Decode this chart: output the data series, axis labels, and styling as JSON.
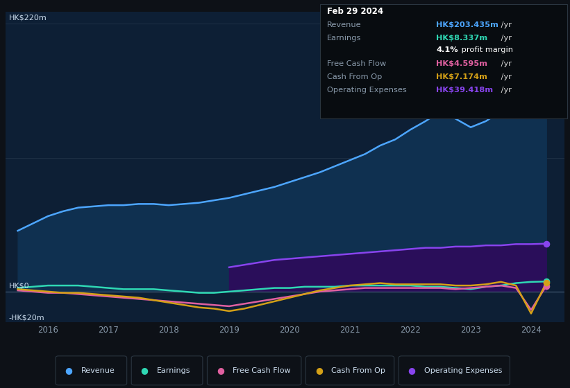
{
  "bg_color": "#0d1117",
  "plot_bg_color": "#0d1f35",
  "revenue_color": "#4da6ff",
  "earnings_color": "#2fd8b4",
  "fcf_color": "#e060a0",
  "cashop_color": "#d4a017",
  "opex_color": "#8844ee",
  "revenue_fill_color": "#0f3050",
  "opex_fill_color": "#2a0e5a",
  "info_box_bg": "#080c10",
  "info_box_border": "#2a3540",
  "grid_color": "#1e3045",
  "axis_label_color": "#8899aa",
  "ylabel_label_color": "#ccddee",
  "ylim": [
    -25,
    230
  ],
  "xlim": [
    2015.3,
    2024.55
  ],
  "xtick_positions": [
    2016,
    2017,
    2018,
    2019,
    2020,
    2021,
    2022,
    2023,
    2024
  ],
  "xtick_labels": [
    "2016",
    "2017",
    "2018",
    "2019",
    "2020",
    "2021",
    "2022",
    "2023",
    "2024"
  ],
  "ylabel_220": "HK$220m",
  "ylabel_0": "HK$0",
  "ylabel_neg20": "-HK$20m",
  "info_box": {
    "date": "Feb 29 2024",
    "revenue_label": "Revenue",
    "revenue_val": "HK$203.435m",
    "revenue_suffix": " /yr",
    "revenue_color": "#4da6ff",
    "earnings_label": "Earnings",
    "earnings_val": "HK$8.337m",
    "earnings_suffix": " /yr",
    "earnings_color": "#2fd8b4",
    "margin_pct": "4.1%",
    "margin_text": " profit margin",
    "margin_pct_color": "#ffffff",
    "margin_text_color": "#ffffff",
    "fcf_label": "Free Cash Flow",
    "fcf_val": "HK$4.595m",
    "fcf_suffix": " /yr",
    "fcf_color": "#e060a0",
    "cashop_label": "Cash From Op",
    "cashop_val": "HK$7.174m",
    "cashop_suffix": " /yr",
    "cashop_color": "#d4a017",
    "opex_label": "Operating Expenses",
    "opex_val": "HK$39.418m",
    "opex_suffix": " /yr",
    "opex_color": "#8844ee"
  },
  "revenue_x": [
    2015.5,
    2015.75,
    2016.0,
    2016.25,
    2016.5,
    2016.75,
    2017.0,
    2017.25,
    2017.5,
    2017.75,
    2018.0,
    2018.25,
    2018.5,
    2018.75,
    2019.0,
    2019.25,
    2019.5,
    2019.75,
    2020.0,
    2020.25,
    2020.5,
    2020.75,
    2021.0,
    2021.25,
    2021.5,
    2021.75,
    2022.0,
    2022.25,
    2022.5,
    2022.75,
    2023.0,
    2023.25,
    2023.5,
    2023.75,
    2024.0,
    2024.25
  ],
  "revenue_y": [
    50,
    56,
    62,
    66,
    69,
    70,
    71,
    71,
    72,
    72,
    71,
    72,
    73,
    75,
    77,
    80,
    83,
    86,
    90,
    94,
    98,
    103,
    108,
    113,
    120,
    125,
    133,
    140,
    148,
    142,
    135,
    140,
    148,
    165,
    192,
    203
  ],
  "earnings_x": [
    2015.5,
    2015.75,
    2016.0,
    2016.25,
    2016.5,
    2016.75,
    2017.0,
    2017.25,
    2017.5,
    2017.75,
    2018.0,
    2018.25,
    2018.5,
    2018.75,
    2019.0,
    2019.25,
    2019.5,
    2019.75,
    2020.0,
    2020.25,
    2020.5,
    2020.75,
    2021.0,
    2021.25,
    2021.5,
    2021.75,
    2022.0,
    2022.25,
    2022.5,
    2022.75,
    2023.0,
    2023.25,
    2023.5,
    2023.75,
    2024.0,
    2024.25
  ],
  "earnings_y": [
    3,
    4,
    5,
    5,
    5,
    4,
    3,
    2,
    2,
    2,
    1,
    0,
    -1,
    -1,
    0,
    1,
    2,
    3,
    3,
    4,
    4,
    4,
    5,
    5,
    5,
    5,
    5,
    4,
    4,
    3,
    2,
    4,
    5,
    7,
    8,
    8.3
  ],
  "fcf_x": [
    2015.5,
    2015.75,
    2016.0,
    2016.25,
    2016.5,
    2016.75,
    2017.0,
    2017.25,
    2017.5,
    2017.75,
    2018.0,
    2018.25,
    2018.5,
    2018.75,
    2019.0,
    2019.25,
    2019.5,
    2019.75,
    2020.0,
    2020.25,
    2020.5,
    2020.75,
    2021.0,
    2021.25,
    2021.5,
    2021.75,
    2022.0,
    2022.25,
    2022.5,
    2022.75,
    2023.0,
    2023.25,
    2023.5,
    2023.75,
    2024.0,
    2024.25
  ],
  "fcf_y": [
    1,
    0,
    -1,
    -1,
    -2,
    -3,
    -4,
    -5,
    -6,
    -7,
    -8,
    -9,
    -10,
    -11,
    -12,
    -10,
    -8,
    -6,
    -4,
    -2,
    0,
    1,
    2,
    3,
    3,
    3,
    3,
    3,
    3,
    2,
    3,
    4,
    5,
    3,
    -15,
    4.6
  ],
  "cashop_x": [
    2015.5,
    2015.75,
    2016.0,
    2016.25,
    2016.5,
    2016.75,
    2017.0,
    2017.25,
    2017.5,
    2017.75,
    2018.0,
    2018.25,
    2018.5,
    2018.75,
    2019.0,
    2019.25,
    2019.5,
    2019.75,
    2020.0,
    2020.25,
    2020.5,
    2020.75,
    2021.0,
    2021.25,
    2021.5,
    2021.75,
    2022.0,
    2022.25,
    2022.5,
    2022.75,
    2023.0,
    2023.25,
    2023.5,
    2023.75,
    2024.0,
    2024.25
  ],
  "cashop_y": [
    2,
    1,
    0,
    -1,
    -1,
    -2,
    -3,
    -4,
    -5,
    -7,
    -9,
    -11,
    -13,
    -14,
    -16,
    -14,
    -11,
    -8,
    -5,
    -2,
    1,
    3,
    5,
    6,
    7,
    6,
    6,
    6,
    6,
    5,
    5,
    6,
    8,
    5,
    -18,
    7.2
  ],
  "opex_x": [
    2019.0,
    2019.25,
    2019.5,
    2019.75,
    2020.0,
    2020.25,
    2020.5,
    2020.75,
    2021.0,
    2021.25,
    2021.5,
    2021.75,
    2022.0,
    2022.25,
    2022.5,
    2022.75,
    2023.0,
    2023.25,
    2023.5,
    2023.75,
    2024.0,
    2024.25
  ],
  "opex_y": [
    20,
    22,
    24,
    26,
    27,
    28,
    29,
    30,
    31,
    32,
    33,
    34,
    35,
    36,
    36,
    37,
    37,
    38,
    38,
    39,
    39,
    39.4
  ]
}
